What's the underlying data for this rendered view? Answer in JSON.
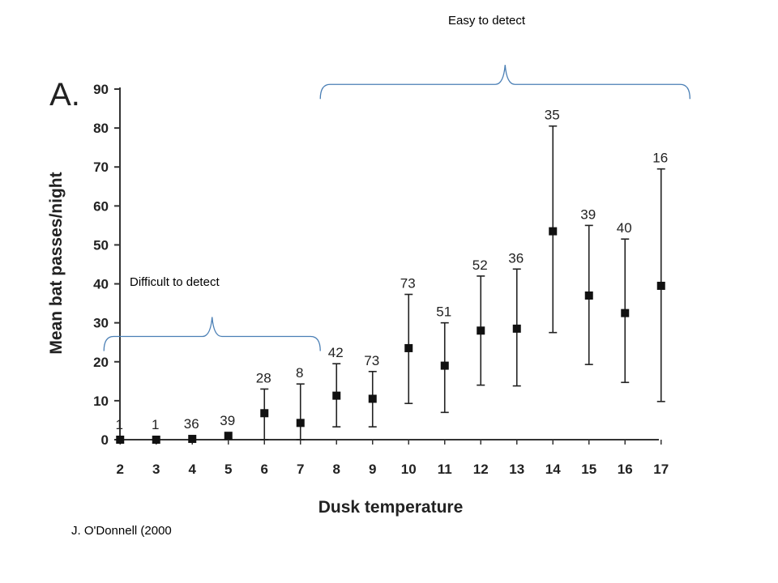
{
  "annotations": {
    "easy": "Easy to detect",
    "difficult": "Difficult to detect",
    "source": "J. O'Donnell (2000"
  },
  "chart_data": {
    "type": "scatter",
    "panel_label": "A.",
    "xlabel": "Dusk temperature",
    "ylabel": "Mean bat passes/night",
    "xlim": [
      1.5,
      17.5
    ],
    "ylim": [
      0,
      90
    ],
    "x_ticks": [
      2,
      3,
      4,
      5,
      6,
      7,
      8,
      9,
      10,
      11,
      12,
      13,
      14,
      15,
      16,
      17
    ],
    "y_ticks": [
      0,
      10,
      20,
      30,
      40,
      50,
      60,
      70,
      80,
      90
    ],
    "grid": false,
    "points": [
      {
        "x": 2,
        "mean": 0,
        "lower": null,
        "upper": null,
        "n": "1"
      },
      {
        "x": 3,
        "mean": 0,
        "lower": null,
        "upper": null,
        "n": "1"
      },
      {
        "x": 4,
        "mean": 0.2,
        "lower": null,
        "upper": null,
        "n": "36"
      },
      {
        "x": 5,
        "mean": 1,
        "lower": null,
        "upper": null,
        "n": "39"
      },
      {
        "x": 6,
        "mean": 6.8,
        "lower": 0,
        "upper": 13,
        "n": "28"
      },
      {
        "x": 7,
        "mean": 4.3,
        "lower": 0,
        "upper": 14.3,
        "n": "8"
      },
      {
        "x": 8,
        "mean": 11.3,
        "lower": 3.3,
        "upper": 19.5,
        "n": "42"
      },
      {
        "x": 9,
        "mean": 10.5,
        "lower": 3.3,
        "upper": 17.5,
        "n": "73"
      },
      {
        "x": 10,
        "mean": 23.5,
        "lower": 9.3,
        "upper": 37.3,
        "n": "73"
      },
      {
        "x": 11,
        "mean": 19,
        "lower": 7,
        "upper": 30,
        "n": "51"
      },
      {
        "x": 12,
        "mean": 28,
        "lower": 14,
        "upper": 42,
        "n": "52"
      },
      {
        "x": 13,
        "mean": 28.5,
        "lower": 13.8,
        "upper": 43.8,
        "n": "36"
      },
      {
        "x": 14,
        "mean": 53.5,
        "lower": 27.5,
        "upper": 80.5,
        "n": "35"
      },
      {
        "x": 15,
        "mean": 37,
        "lower": 19.3,
        "upper": 55,
        "n": "39"
      },
      {
        "x": 16,
        "mean": 32.5,
        "lower": 14.7,
        "upper": 51.5,
        "n": "40"
      },
      {
        "x": 17,
        "mean": 39.5,
        "lower": 9.8,
        "upper": 69.5,
        "n": "16"
      }
    ],
    "brackets": [
      {
        "label_key": "difficult",
        "x_from": 1.55,
        "x_to": 7.55,
        "level": 26.5
      },
      {
        "label_key": "easy",
        "x_from": 7.55,
        "x_to": 17.8,
        "level": 91.2
      }
    ]
  }
}
